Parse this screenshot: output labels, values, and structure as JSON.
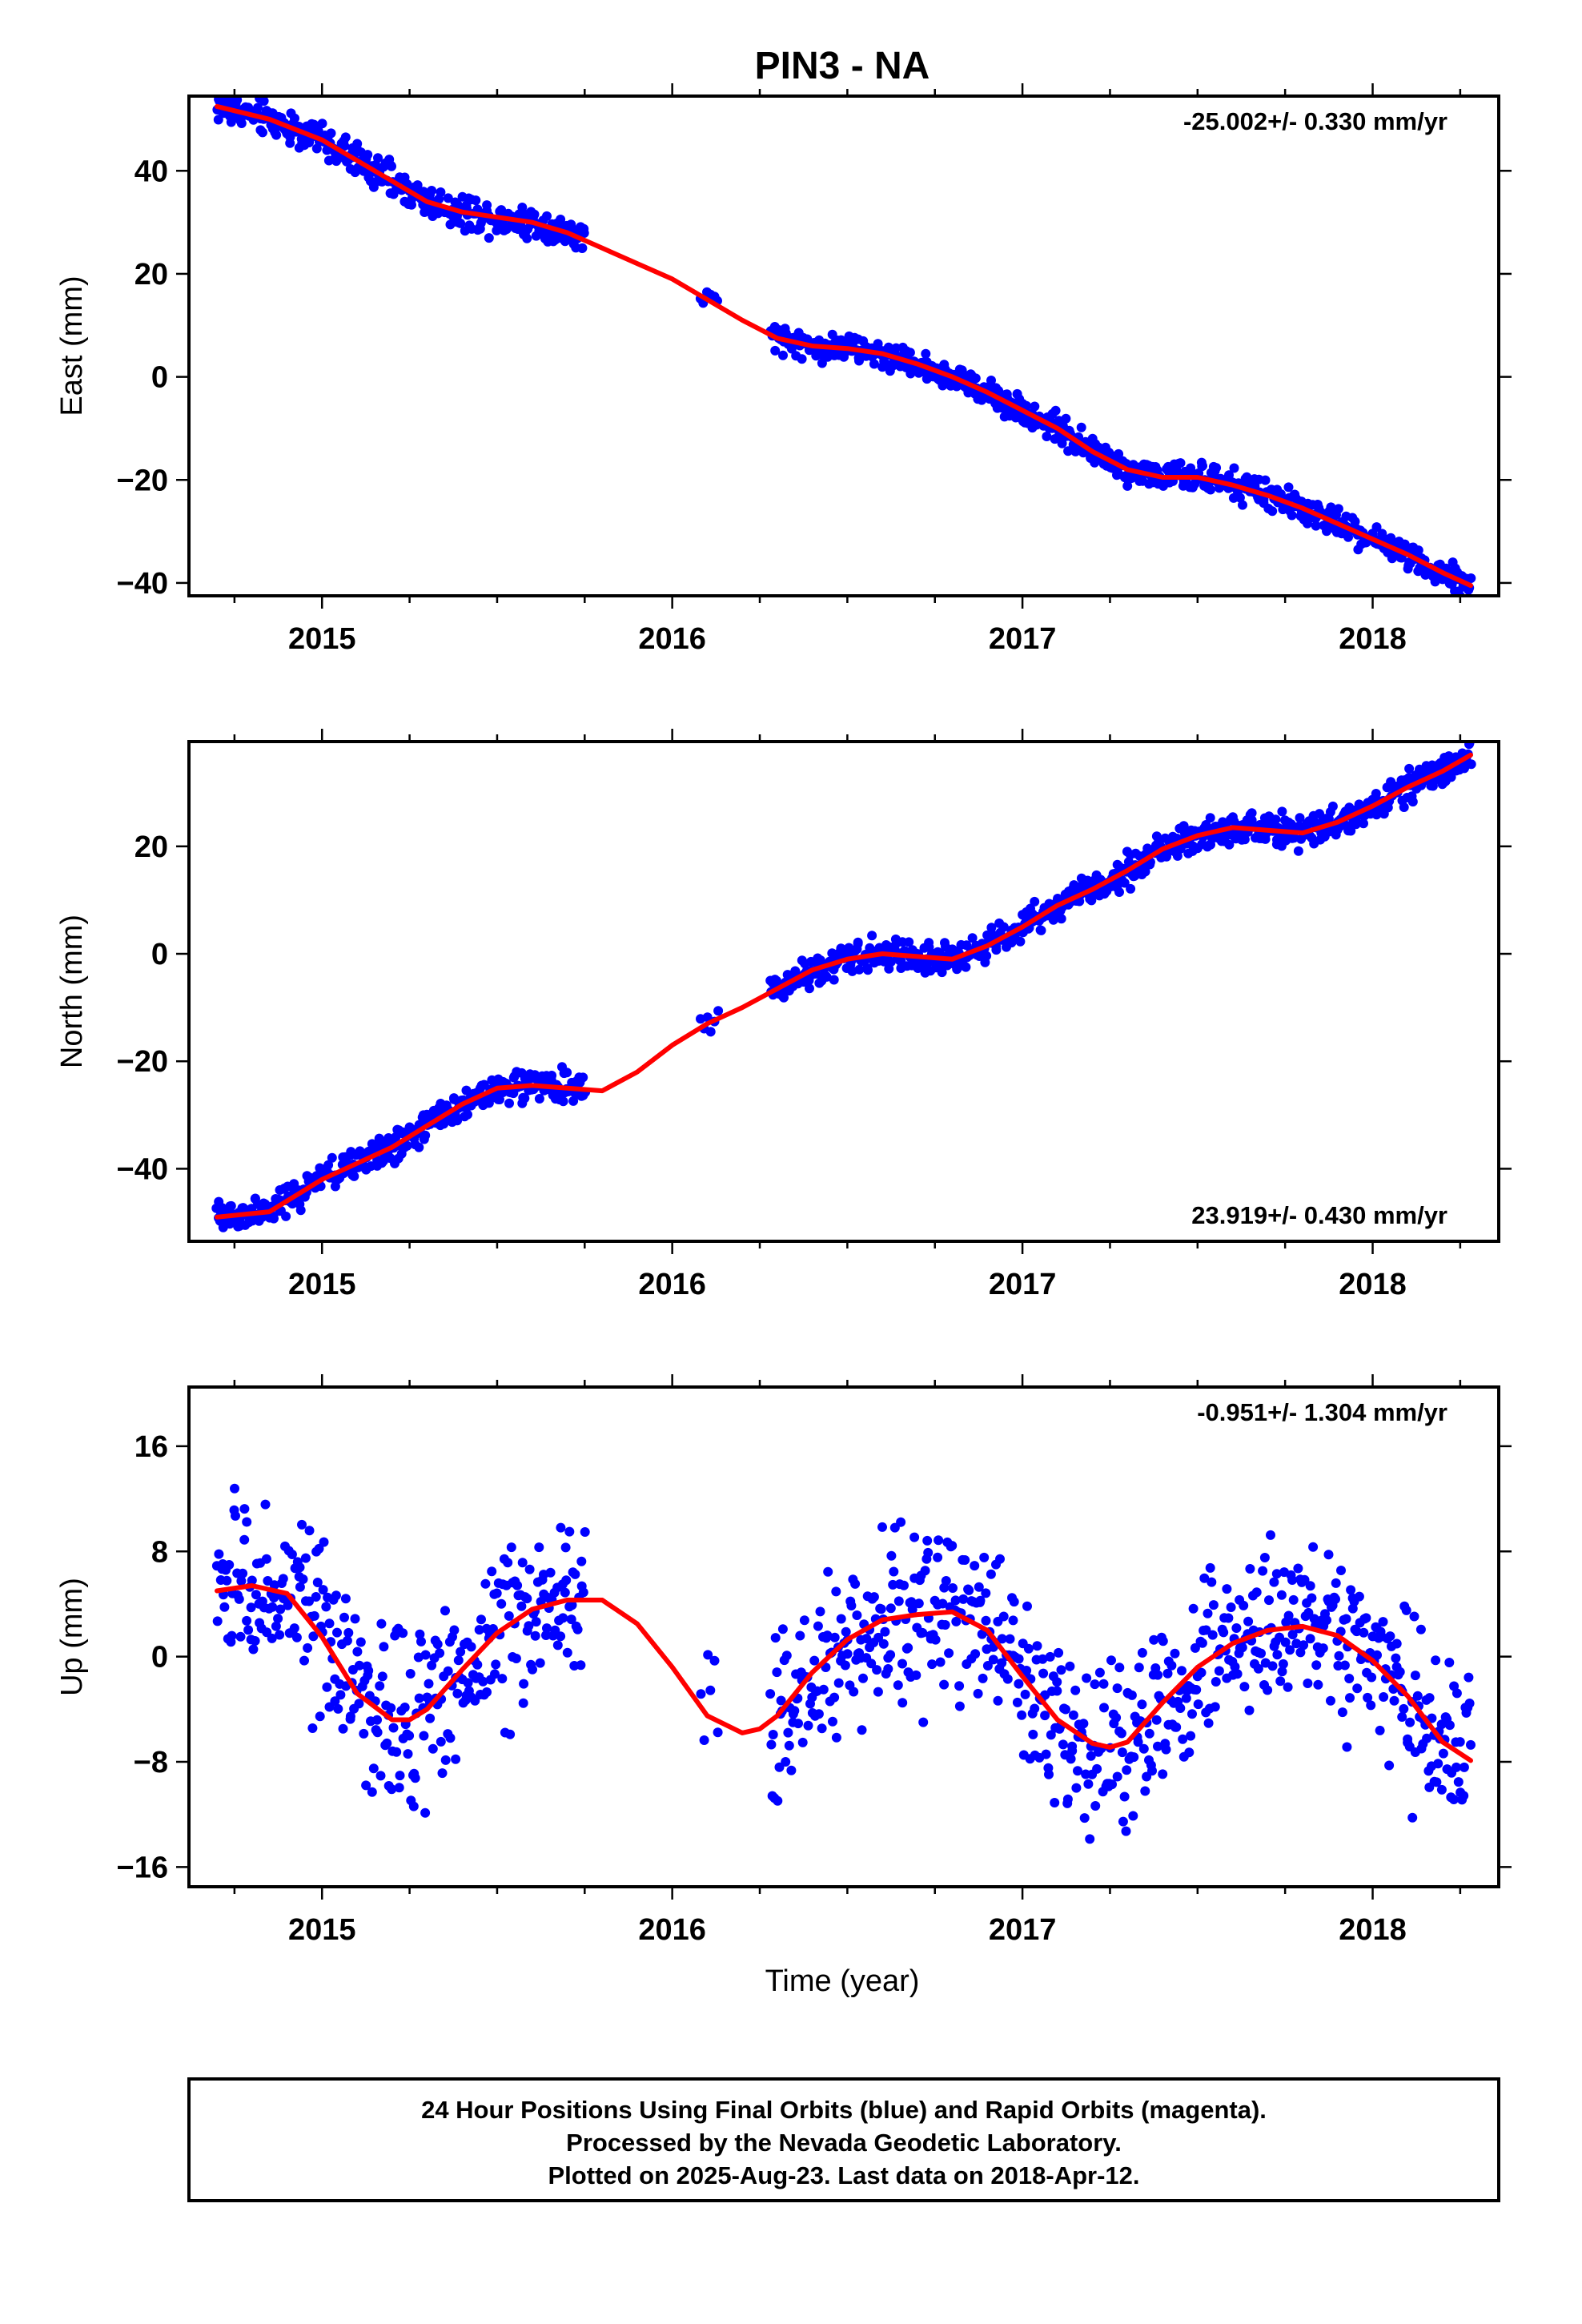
{
  "title": "PIN3 - NA",
  "colors": {
    "points": "#0000ff",
    "fit": "#ff0000",
    "frame": "#000000"
  },
  "xlabel": "Time (year)",
  "footer": {
    "line1": "24 Hour Positions Using Final Orbits (blue) and Rapid Orbits (magenta).",
    "line2": "Processed by the Nevada Geodetic Laboratory.",
    "line3": "Plotted on 2025-Aug-23. Last data on 2018-Apr-12."
  },
  "chart_data": [
    {
      "type": "scatter",
      "component": "east",
      "ylabel": "East (mm)",
      "rate": "-25.002+/- 0.330 mm/yr",
      "rate_position": "top-right",
      "xlim": [
        2014.62,
        2018.36
      ],
      "ylim": [
        -42.5,
        54.5
      ],
      "xticks": [
        2015,
        2016,
        2017,
        2018
      ],
      "yticks": [
        -40,
        -20,
        0,
        20,
        40
      ],
      "fit": {
        "x": [
          2014.7,
          2014.85,
          2015.0,
          2015.1,
          2015.2,
          2015.3,
          2015.4,
          2015.5,
          2015.6,
          2015.7,
          2015.8,
          2015.9,
          2016.0,
          2016.1,
          2016.2,
          2016.3,
          2016.4,
          2016.5,
          2016.6,
          2016.7,
          2016.8,
          2016.9,
          2017.0,
          2017.1,
          2017.2,
          2017.3,
          2017.4,
          2017.5,
          2017.6,
          2017.7,
          2017.8,
          2017.9,
          2018.0,
          2018.1,
          2018.2,
          2018.28
        ],
        "y": [
          52.5,
          50.0,
          46.0,
          42.0,
          38.0,
          34.0,
          32.0,
          31.0,
          30.0,
          28.0,
          25.0,
          22.0,
          19.0,
          15.0,
          11.0,
          7.5,
          6.0,
          5.5,
          4.5,
          2.5,
          0.0,
          -3.0,
          -6.5,
          -10.0,
          -14.5,
          -18.0,
          -19.5,
          -19.5,
          -21.0,
          -23.0,
          -25.5,
          -28.5,
          -31.5,
          -34.5,
          -38.0,
          -40.5
        ]
      },
      "segments": [
        {
          "start": 2014.7,
          "end": 2015.75,
          "count": 360,
          "noise": 1.6
        },
        {
          "start": 2016.08,
          "end": 2016.13,
          "count": 6,
          "noise": 1.2
        },
        {
          "start": 2016.28,
          "end": 2018.28,
          "count": 700,
          "noise": 1.3
        }
      ]
    },
    {
      "type": "scatter",
      "component": "north",
      "ylabel": "North (mm)",
      "rate": "23.919+/- 0.430 mm/yr",
      "rate_position": "bottom-right",
      "xlim": [
        2014.62,
        2018.36
      ],
      "ylim": [
        -53.5,
        39.5
      ],
      "xticks": [
        2015,
        2016,
        2017,
        2018
      ],
      "yticks": [
        -40,
        -20,
        0,
        20
      ],
      "fit": {
        "x": [
          2014.7,
          2014.85,
          2015.0,
          2015.1,
          2015.2,
          2015.3,
          2015.4,
          2015.5,
          2015.6,
          2015.7,
          2015.8,
          2015.9,
          2016.0,
          2016.1,
          2016.2,
          2016.3,
          2016.4,
          2016.5,
          2016.6,
          2016.7,
          2016.8,
          2016.9,
          2017.0,
          2017.1,
          2017.2,
          2017.3,
          2017.4,
          2017.5,
          2017.6,
          2017.7,
          2017.8,
          2017.9,
          2018.0,
          2018.1,
          2018.2,
          2018.28
        ],
        "y": [
          -49.0,
          -48.0,
          -42.0,
          -39.0,
          -36.0,
          -32.0,
          -28.0,
          -25.0,
          -24.5,
          -25.0,
          -25.5,
          -22.0,
          -17.0,
          -13.0,
          -10.0,
          -6.5,
          -3.0,
          -1.0,
          0.0,
          -0.5,
          -1.0,
          1.5,
          5.0,
          9.0,
          12.0,
          15.5,
          19.5,
          22.0,
          23.5,
          23.0,
          22.5,
          24.5,
          27.5,
          31.0,
          34.0,
          37.0
        ]
      },
      "segments": [
        {
          "start": 2014.7,
          "end": 2015.75,
          "count": 360,
          "noise": 1.5
        },
        {
          "start": 2016.08,
          "end": 2016.13,
          "count": 6,
          "noise": 1.0
        },
        {
          "start": 2016.28,
          "end": 2018.28,
          "count": 700,
          "noise": 1.4
        }
      ]
    },
    {
      "type": "scatter",
      "component": "up",
      "ylabel": "Up (mm)",
      "rate": "-0.951+/- 1.304 mm/yr",
      "rate_position": "top-right",
      "xlim": [
        2014.62,
        2018.36
      ],
      "ylim": [
        -17.5,
        20.5
      ],
      "xticks": [
        2015,
        2016,
        2017,
        2018
      ],
      "yticks": [
        -16,
        -8,
        0,
        8,
        16
      ],
      "fit": {
        "x": [
          2014.7,
          2014.8,
          2014.9,
          2015.0,
          2015.1,
          2015.2,
          2015.25,
          2015.3,
          2015.4,
          2015.5,
          2015.6,
          2015.7,
          2015.8,
          2015.9,
          2016.0,
          2016.1,
          2016.2,
          2016.25,
          2016.3,
          2016.4,
          2016.5,
          2016.6,
          2016.7,
          2016.8,
          2016.9,
          2017.0,
          2017.1,
          2017.2,
          2017.25,
          2017.3,
          2017.4,
          2017.5,
          2017.6,
          2017.7,
          2017.8,
          2017.9,
          2018.0,
          2018.1,
          2018.2,
          2018.28
        ],
        "y": [
          5.0,
          5.4,
          4.8,
          1.5,
          -2.8,
          -4.8,
          -4.8,
          -4.0,
          -1.0,
          1.8,
          3.6,
          4.3,
          4.3,
          2.5,
          -0.8,
          -4.5,
          -5.8,
          -5.5,
          -4.5,
          -1.2,
          1.3,
          2.8,
          3.2,
          3.4,
          2.0,
          -1.5,
          -4.8,
          -6.6,
          -6.9,
          -6.5,
          -3.5,
          -0.8,
          1.0,
          2.0,
          2.3,
          1.6,
          -0.3,
          -3.0,
          -6.5,
          -7.9
        ]
      },
      "segments": [
        {
          "start": 2014.7,
          "end": 2015.75,
          "count": 330,
          "noise": 3.3
        },
        {
          "start": 2016.08,
          "end": 2016.13,
          "count": 6,
          "noise": 2.5
        },
        {
          "start": 2016.28,
          "end": 2018.28,
          "count": 640,
          "noise": 3.1
        }
      ]
    }
  ]
}
